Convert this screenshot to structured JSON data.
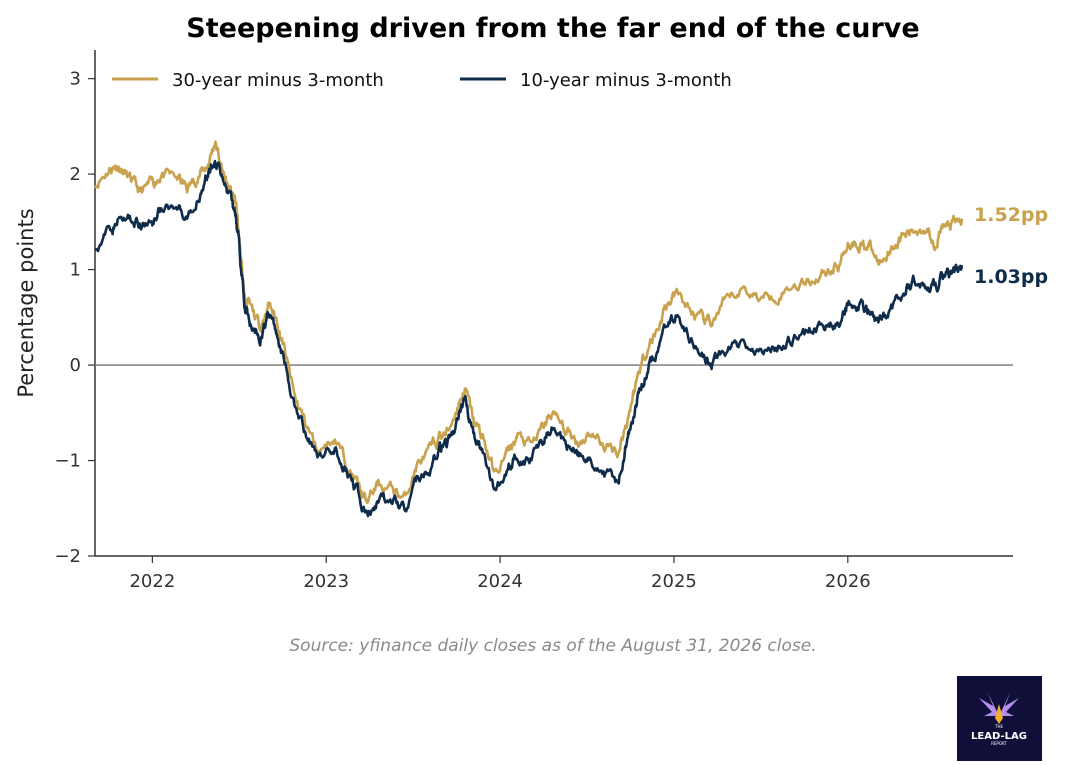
{
  "chart_data": {
    "type": "line",
    "title": "Steepening driven from the far end of the curve",
    "ylabel": "Percentage points",
    "xlabel": "",
    "ylim": [
      -2,
      3.3
    ],
    "xlim": [
      2021.67,
      2026.95
    ],
    "yticks": [
      -2,
      -1,
      0,
      1,
      2,
      3
    ],
    "ytick_labels": [
      "−2",
      "−1",
      "0",
      "1",
      "2",
      "3"
    ],
    "xticks": [
      2022,
      2023,
      2024,
      2025,
      2026
    ],
    "xtick_labels": [
      "2022",
      "2023",
      "2024",
      "2025",
      "2026"
    ],
    "zero_line": true,
    "grid": false,
    "legend_position": "top-left",
    "series": [
      {
        "name": "30-year minus 3-month",
        "color": "#c9a24f",
        "end_label": "1.52pp",
        "points": [
          [
            2021.67,
            1.9
          ],
          [
            2021.75,
            2.05
          ],
          [
            2021.8,
            2.1
          ],
          [
            2021.87,
            1.95
          ],
          [
            2021.93,
            1.8
          ],
          [
            2022.0,
            1.9
          ],
          [
            2022.05,
            2.0
          ],
          [
            2022.15,
            1.95
          ],
          [
            2022.2,
            1.85
          ],
          [
            2022.27,
            2.0
          ],
          [
            2022.32,
            2.1
          ],
          [
            2022.36,
            2.35
          ],
          [
            2022.4,
            2.05
          ],
          [
            2022.45,
            1.8
          ],
          [
            2022.48,
            1.7
          ],
          [
            2022.5,
            1.3
          ],
          [
            2022.53,
            0.7
          ],
          [
            2022.56,
            0.6
          ],
          [
            2022.62,
            0.4
          ],
          [
            2022.67,
            0.65
          ],
          [
            2022.72,
            0.45
          ],
          [
            2022.76,
            0.15
          ],
          [
            2022.82,
            -0.35
          ],
          [
            2022.88,
            -0.6
          ],
          [
            2022.95,
            -0.9
          ],
          [
            2023.05,
            -0.75
          ],
          [
            2023.12,
            -1.05
          ],
          [
            2023.18,
            -1.25
          ],
          [
            2023.23,
            -1.45
          ],
          [
            2023.3,
            -1.25
          ],
          [
            2023.38,
            -1.3
          ],
          [
            2023.45,
            -1.4
          ],
          [
            2023.52,
            -1.05
          ],
          [
            2023.6,
            -0.9
          ],
          [
            2023.65,
            -0.75
          ],
          [
            2023.7,
            -0.7
          ],
          [
            2023.76,
            -0.4
          ],
          [
            2023.8,
            -0.25
          ],
          [
            2023.85,
            -0.6
          ],
          [
            2023.9,
            -0.75
          ],
          [
            2023.97,
            -1.15
          ],
          [
            2024.05,
            -0.9
          ],
          [
            2024.1,
            -0.75
          ],
          [
            2024.18,
            -0.85
          ],
          [
            2024.25,
            -0.65
          ],
          [
            2024.3,
            -0.5
          ],
          [
            2024.38,
            -0.7
          ],
          [
            2024.45,
            -0.8
          ],
          [
            2024.52,
            -0.7
          ],
          [
            2024.6,
            -0.85
          ],
          [
            2024.68,
            -0.9
          ],
          [
            2024.72,
            -0.65
          ],
          [
            2024.76,
            -0.35
          ],
          [
            2024.8,
            -0.05
          ],
          [
            2024.85,
            0.2
          ],
          [
            2024.9,
            0.35
          ],
          [
            2024.95,
            0.6
          ],
          [
            2025.02,
            0.75
          ],
          [
            2025.1,
            0.55
          ],
          [
            2025.17,
            0.45
          ],
          [
            2025.22,
            0.45
          ],
          [
            2025.3,
            0.65
          ],
          [
            2025.4,
            0.8
          ],
          [
            2025.5,
            0.7
          ],
          [
            2025.6,
            0.75
          ],
          [
            2025.7,
            0.85
          ],
          [
            2025.8,
            0.9
          ],
          [
            2025.88,
            1.0
          ],
          [
            2025.95,
            1.05
          ],
          [
            2026.0,
            1.3
          ],
          [
            2026.07,
            1.28
          ],
          [
            2026.12,
            1.25
          ],
          [
            2026.18,
            1.05
          ],
          [
            2026.25,
            1.25
          ],
          [
            2026.32,
            1.35
          ],
          [
            2026.38,
            1.4
          ],
          [
            2026.45,
            1.45
          ],
          [
            2026.5,
            1.3
          ],
          [
            2026.55,
            1.45
          ],
          [
            2026.6,
            1.45
          ],
          [
            2026.66,
            1.52
          ]
        ]
      },
      {
        "name": "10-year minus 3-month",
        "color": "#0f2d4a",
        "end_label": "1.03pp",
        "points": [
          [
            2021.67,
            1.25
          ],
          [
            2021.75,
            1.4
          ],
          [
            2021.8,
            1.5
          ],
          [
            2021.87,
            1.55
          ],
          [
            2021.93,
            1.45
          ],
          [
            2022.0,
            1.5
          ],
          [
            2022.05,
            1.65
          ],
          [
            2022.15,
            1.6
          ],
          [
            2022.2,
            1.45
          ],
          [
            2022.27,
            1.8
          ],
          [
            2022.32,
            2.0
          ],
          [
            2022.36,
            2.2
          ],
          [
            2022.4,
            1.95
          ],
          [
            2022.45,
            1.75
          ],
          [
            2022.48,
            1.6
          ],
          [
            2022.5,
            1.2
          ],
          [
            2022.53,
            0.65
          ],
          [
            2022.56,
            0.45
          ],
          [
            2022.62,
            0.3
          ],
          [
            2022.67,
            0.55
          ],
          [
            2022.72,
            0.3
          ],
          [
            2022.76,
            0.05
          ],
          [
            2022.82,
            -0.45
          ],
          [
            2022.88,
            -0.7
          ],
          [
            2022.95,
            -1.0
          ],
          [
            2023.05,
            -0.85
          ],
          [
            2023.12,
            -1.1
          ],
          [
            2023.18,
            -1.35
          ],
          [
            2023.23,
            -1.6
          ],
          [
            2023.3,
            -1.4
          ],
          [
            2023.38,
            -1.45
          ],
          [
            2023.45,
            -1.5
          ],
          [
            2023.52,
            -1.2
          ],
          [
            2023.6,
            -1.05
          ],
          [
            2023.65,
            -0.9
          ],
          [
            2023.7,
            -0.85
          ],
          [
            2023.76,
            -0.55
          ],
          [
            2023.8,
            -0.4
          ],
          [
            2023.85,
            -0.75
          ],
          [
            2023.9,
            -0.9
          ],
          [
            2023.97,
            -1.35
          ],
          [
            2024.05,
            -1.05
          ],
          [
            2024.1,
            -0.95
          ],
          [
            2024.18,
            -1.0
          ],
          [
            2024.25,
            -0.8
          ],
          [
            2024.3,
            -0.65
          ],
          [
            2024.38,
            -0.85
          ],
          [
            2024.45,
            -0.95
          ],
          [
            2024.52,
            -0.95
          ],
          [
            2024.6,
            -1.15
          ],
          [
            2024.68,
            -1.2
          ],
          [
            2024.72,
            -0.85
          ],
          [
            2024.76,
            -0.55
          ],
          [
            2024.8,
            -0.25
          ],
          [
            2024.85,
            -0.05
          ],
          [
            2024.9,
            0.1
          ],
          [
            2024.95,
            0.4
          ],
          [
            2025.02,
            0.55
          ],
          [
            2025.1,
            0.25
          ],
          [
            2025.17,
            0.15
          ],
          [
            2025.22,
            0.05
          ],
          [
            2025.3,
            0.15
          ],
          [
            2025.4,
            0.25
          ],
          [
            2025.5,
            0.15
          ],
          [
            2025.6,
            0.2
          ],
          [
            2025.7,
            0.3
          ],
          [
            2025.8,
            0.35
          ],
          [
            2025.88,
            0.4
          ],
          [
            2025.95,
            0.45
          ],
          [
            2026.0,
            0.65
          ],
          [
            2026.07,
            0.65
          ],
          [
            2026.12,
            0.55
          ],
          [
            2026.18,
            0.45
          ],
          [
            2026.25,
            0.6
          ],
          [
            2026.32,
            0.75
          ],
          [
            2026.38,
            0.9
          ],
          [
            2026.45,
            0.85
          ],
          [
            2026.5,
            0.8
          ],
          [
            2026.55,
            0.95
          ],
          [
            2026.6,
            0.98
          ],
          [
            2026.66,
            1.03
          ]
        ]
      }
    ],
    "source_note": "Source: yfinance daily closes as of the August 31, 2026 close."
  },
  "logo": {
    "line1": "LEAD-LAG",
    "line2": "REPORT",
    "line0": "THE",
    "background": "#0f0f3a",
    "accent": "#c89bff"
  }
}
